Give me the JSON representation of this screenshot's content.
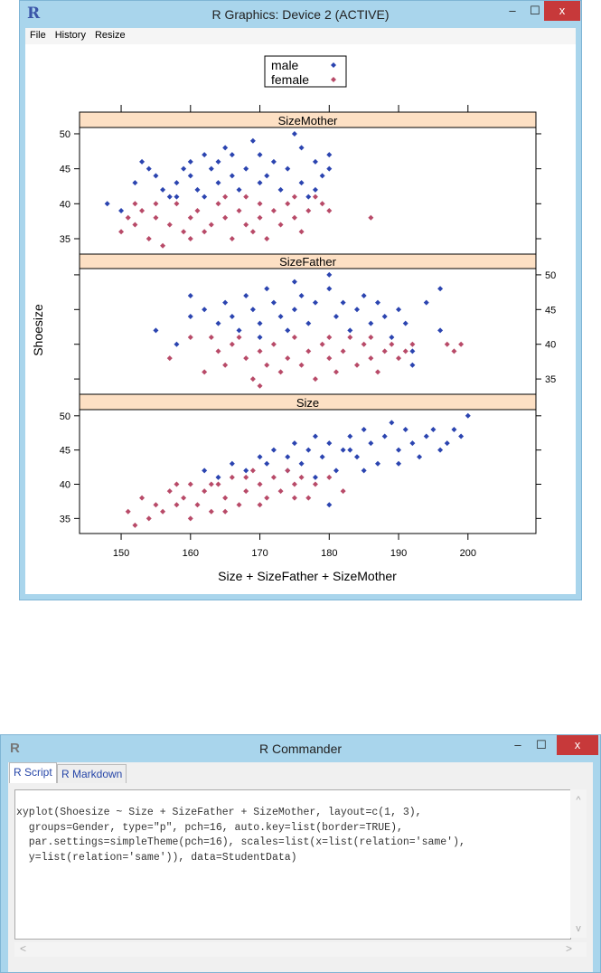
{
  "graphics_window": {
    "title": "R Graphics: Device 2 (ACTIVE)",
    "app_icon": "R",
    "menu": [
      "File",
      "History",
      "Resize"
    ],
    "controls": {
      "minimize": "–",
      "maximize": "☐",
      "close": "x"
    }
  },
  "commander_window": {
    "title": "R Commander",
    "controls": {
      "minimize": "–",
      "maximize": "☐",
      "close": "x"
    },
    "tabs": [
      "R Script",
      "R Markdown"
    ],
    "script_lines": [
      "xyplot(Shoesize ~ Size + SizeFather + SizeMother, layout=c(1, 3),",
      "  groups=Gender, type=\"p\", pch=16, auto.key=list(border=TRUE),",
      "  par.settings=simpleTheme(pch=16), scales=list(x=list(relation='same'),",
      "  y=list(relation='same')), data=StudentData)"
    ],
    "scroll": {
      "up": "^",
      "down": "v",
      "left": "<",
      "right": ">"
    }
  },
  "colors": {
    "male": "#2b44b0",
    "female": "#b84a68",
    "strip": "#fde0c4",
    "titlebar": "#a9d5ec"
  },
  "chart_data": {
    "type": "scatter",
    "xlabel": "Size + SizeFather + SizeMother",
    "ylabel": "Shoesize",
    "xlim": [
      144,
      209.8
    ],
    "ylim": [
      32.8,
      50.9
    ],
    "xticks": [
      150,
      160,
      170,
      180,
      190,
      200
    ],
    "yticks": [
      35,
      40,
      45,
      50
    ],
    "legend": {
      "placement": "top-center",
      "entries": [
        "male",
        "female"
      ]
    },
    "panels": [
      {
        "strip": "SizeMother",
        "male": [
          [
            148,
            40
          ],
          [
            150,
            39
          ],
          [
            152,
            43
          ],
          [
            153,
            46
          ],
          [
            154,
            45
          ],
          [
            155,
            44
          ],
          [
            156,
            42
          ],
          [
            157,
            41
          ],
          [
            158,
            43
          ],
          [
            159,
            45
          ],
          [
            160,
            46
          ],
          [
            160,
            44
          ],
          [
            161,
            42
          ],
          [
            162,
            47
          ],
          [
            163,
            45
          ],
          [
            164,
            43
          ],
          [
            164,
            46
          ],
          [
            165,
            48
          ],
          [
            166,
            44
          ],
          [
            167,
            42
          ],
          [
            168,
            45
          ],
          [
            169,
            49
          ],
          [
            170,
            47
          ],
          [
            170,
            43
          ],
          [
            171,
            44
          ],
          [
            172,
            46
          ],
          [
            173,
            42
          ],
          [
            174,
            45
          ],
          [
            175,
            50
          ],
          [
            176,
            48
          ],
          [
            176,
            43
          ],
          [
            177,
            41
          ],
          [
            178,
            46
          ],
          [
            179,
            44
          ],
          [
            180,
            47
          ],
          [
            180,
            45
          ],
          [
            178,
            42
          ],
          [
            166,
            47
          ],
          [
            162,
            41
          ],
          [
            158,
            41
          ]
        ],
        "female": [
          [
            150,
            36
          ],
          [
            151,
            38
          ],
          [
            152,
            37
          ],
          [
            153,
            39
          ],
          [
            154,
            35
          ],
          [
            155,
            38
          ],
          [
            156,
            34
          ],
          [
            157,
            37
          ],
          [
            158,
            40
          ],
          [
            159,
            36
          ],
          [
            160,
            38
          ],
          [
            161,
            39
          ],
          [
            162,
            36
          ],
          [
            163,
            37
          ],
          [
            164,
            40
          ],
          [
            165,
            38
          ],
          [
            166,
            35
          ],
          [
            167,
            39
          ],
          [
            168,
            37
          ],
          [
            169,
            36
          ],
          [
            170,
            40
          ],
          [
            170,
            38
          ],
          [
            171,
            35
          ],
          [
            172,
            39
          ],
          [
            173,
            37
          ],
          [
            174,
            40
          ],
          [
            175,
            38
          ],
          [
            176,
            36
          ],
          [
            177,
            39
          ],
          [
            178,
            41
          ],
          [
            179,
            40
          ],
          [
            180,
            39
          ],
          [
            186,
            38
          ],
          [
            160,
            35
          ],
          [
            165,
            41
          ],
          [
            155,
            40
          ],
          [
            168,
            41
          ],
          [
            175,
            41
          ],
          [
            152,
            40
          ]
        ]
      },
      {
        "strip": "SizeFather",
        "male": [
          [
            155,
            42
          ],
          [
            158,
            40
          ],
          [
            160,
            47
          ],
          [
            160,
            44
          ],
          [
            162,
            45
          ],
          [
            164,
            43
          ],
          [
            165,
            46
          ],
          [
            166,
            44
          ],
          [
            167,
            42
          ],
          [
            168,
            47
          ],
          [
            169,
            45
          ],
          [
            170,
            43
          ],
          [
            171,
            48
          ],
          [
            172,
            46
          ],
          [
            173,
            44
          ],
          [
            174,
            42
          ],
          [
            175,
            45
          ],
          [
            176,
            47
          ],
          [
            177,
            43
          ],
          [
            178,
            46
          ],
          [
            180,
            50
          ],
          [
            180,
            48
          ],
          [
            181,
            44
          ],
          [
            182,
            46
          ],
          [
            183,
            42
          ],
          [
            184,
            45
          ],
          [
            185,
            47
          ],
          [
            186,
            43
          ],
          [
            187,
            46
          ],
          [
            188,
            44
          ],
          [
            189,
            41
          ],
          [
            190,
            45
          ],
          [
            191,
            43
          ],
          [
            192,
            39
          ],
          [
            194,
            46
          ],
          [
            196,
            48
          ],
          [
            196,
            42
          ],
          [
            192,
            37
          ],
          [
            175,
            49
          ],
          [
            170,
            41
          ]
        ],
        "female": [
          [
            157,
            38
          ],
          [
            160,
            41
          ],
          [
            162,
            36
          ],
          [
            164,
            39
          ],
          [
            165,
            37
          ],
          [
            166,
            40
          ],
          [
            168,
            38
          ],
          [
            169,
            35
          ],
          [
            170,
            34
          ],
          [
            170,
            39
          ],
          [
            171,
            37
          ],
          [
            172,
            40
          ],
          [
            173,
            36
          ],
          [
            174,
            38
          ],
          [
            175,
            41
          ],
          [
            176,
            37
          ],
          [
            177,
            39
          ],
          [
            178,
            35
          ],
          [
            179,
            40
          ],
          [
            180,
            38
          ],
          [
            181,
            36
          ],
          [
            182,
            39
          ],
          [
            183,
            41
          ],
          [
            184,
            37
          ],
          [
            185,
            40
          ],
          [
            186,
            38
          ],
          [
            187,
            36
          ],
          [
            188,
            39
          ],
          [
            189,
            40
          ],
          [
            190,
            38
          ],
          [
            191,
            39
          ],
          [
            192,
            40
          ],
          [
            197,
            40
          ],
          [
            198,
            39
          ],
          [
            199,
            40
          ],
          [
            167,
            41
          ],
          [
            163,
            41
          ],
          [
            180,
            41
          ],
          [
            186,
            41
          ]
        ]
      },
      {
        "strip": "Size",
        "male": [
          [
            162,
            42
          ],
          [
            164,
            41
          ],
          [
            166,
            43
          ],
          [
            168,
            42
          ],
          [
            170,
            44
          ],
          [
            171,
            43
          ],
          [
            172,
            45
          ],
          [
            174,
            44
          ],
          [
            175,
            46
          ],
          [
            176,
            43
          ],
          [
            177,
            45
          ],
          [
            178,
            47
          ],
          [
            179,
            44
          ],
          [
            180,
            46
          ],
          [
            181,
            42
          ],
          [
            182,
            45
          ],
          [
            183,
            47
          ],
          [
            184,
            44
          ],
          [
            185,
            48
          ],
          [
            186,
            46
          ],
          [
            187,
            43
          ],
          [
            188,
            47
          ],
          [
            189,
            49
          ],
          [
            190,
            45
          ],
          [
            191,
            48
          ],
          [
            192,
            46
          ],
          [
            193,
            44
          ],
          [
            194,
            47
          ],
          [
            195,
            48
          ],
          [
            196,
            45
          ],
          [
            197,
            46
          ],
          [
            198,
            48
          ],
          [
            199,
            47
          ],
          [
            200,
            50
          ],
          [
            180,
            37
          ],
          [
            185,
            42
          ],
          [
            178,
            41
          ],
          [
            174,
            42
          ],
          [
            183,
            45
          ],
          [
            190,
            43
          ]
        ],
        "female": [
          [
            151,
            36
          ],
          [
            152,
            34
          ],
          [
            153,
            38
          ],
          [
            154,
            35
          ],
          [
            155,
            37
          ],
          [
            156,
            36
          ],
          [
            157,
            39
          ],
          [
            158,
            37
          ],
          [
            159,
            38
          ],
          [
            160,
            35
          ],
          [
            160,
            40
          ],
          [
            161,
            37
          ],
          [
            162,
            39
          ],
          [
            163,
            36
          ],
          [
            164,
            40
          ],
          [
            165,
            38
          ],
          [
            166,
            41
          ],
          [
            167,
            37
          ],
          [
            168,
            39
          ],
          [
            169,
            42
          ],
          [
            170,
            40
          ],
          [
            171,
            38
          ],
          [
            172,
            41
          ],
          [
            173,
            39
          ],
          [
            174,
            42
          ],
          [
            175,
            40
          ],
          [
            176,
            41
          ],
          [
            177,
            38
          ],
          [
            178,
            40
          ],
          [
            180,
            41
          ],
          [
            182,
            39
          ],
          [
            175,
            38
          ],
          [
            170,
            37
          ],
          [
            165,
            36
          ],
          [
            168,
            41
          ],
          [
            163,
            40
          ],
          [
            158,
            40
          ]
        ]
      }
    ]
  }
}
